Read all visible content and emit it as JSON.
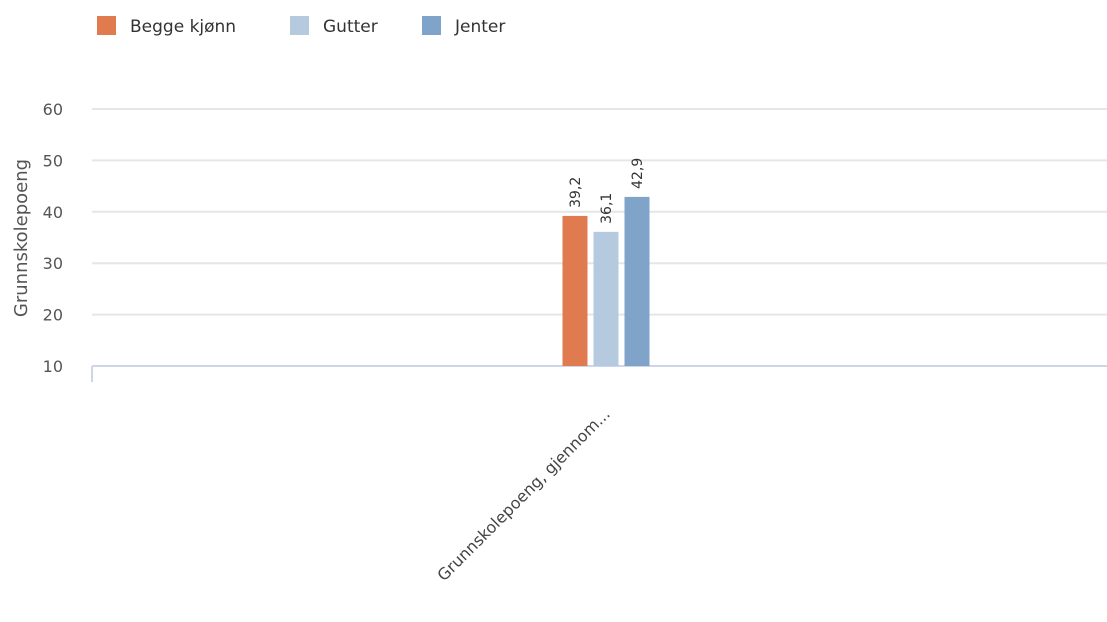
{
  "chart_data": {
    "type": "bar",
    "categories": [
      "Grunnskolepoeng, gjennom..."
    ],
    "series": [
      {
        "name": "Begge kjønn",
        "values": [
          39.2
        ],
        "labels": [
          "39,2"
        ],
        "color": "#e07b4f"
      },
      {
        "name": "Gutter",
        "values": [
          36.1
        ],
        "labels": [
          "36,1"
        ],
        "color": "#b5c9df"
      },
      {
        "name": "Jenter",
        "values": [
          42.9
        ],
        "labels": [
          "42,9"
        ],
        "color": "#7fa3c9"
      }
    ],
    "title": "",
    "xlabel": "",
    "ylabel": "Grunnskolepoeng",
    "ylim": [
      10,
      60
    ],
    "yticks": [
      10,
      20,
      30,
      40,
      50,
      60
    ],
    "ytick_labels": [
      "10",
      "20",
      "30",
      "40",
      "50",
      "60"
    ],
    "grid": true,
    "legend_position": "top-left",
    "gridline_color": "#e6e6e6",
    "axis_color": "#ccd6eb"
  }
}
